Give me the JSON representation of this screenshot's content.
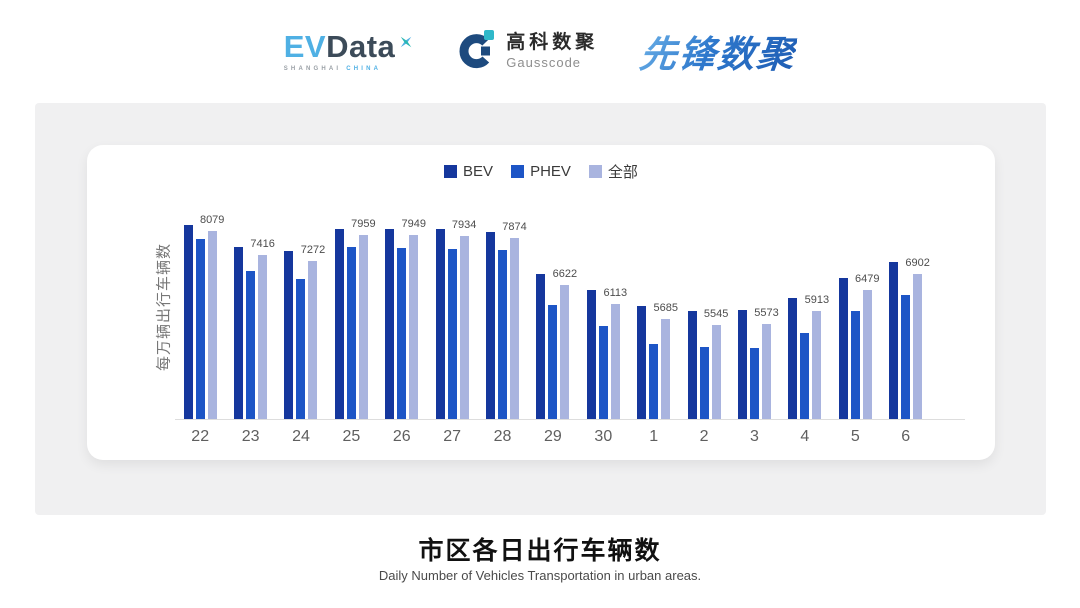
{
  "header": {
    "evdata_logo": {
      "ev": "EV",
      "data": "Data",
      "tagline_location": "SHANGHAI",
      "tagline_country": "CHINA"
    },
    "gausscode_logo": {
      "name_cn": "高科数聚",
      "name_en": "Gausscode"
    },
    "pioneer_logo": {
      "name": "先锋数聚"
    }
  },
  "chart_data": {
    "type": "bar",
    "title": "市区各日出行车辆数",
    "subtitle": "Daily Number of Vehicles Transportation in urban areas.",
    "ylabel": "每万辆出行车辆数",
    "xlabel": "",
    "categories": [
      "22",
      "23",
      "24",
      "25",
      "26",
      "27",
      "28",
      "29",
      "30",
      "1",
      "2",
      "3",
      "4",
      "5",
      "6"
    ],
    "series": [
      {
        "name": "BEV",
        "color": "#15379D",
        "values": [
          8230,
          7650,
          7540,
          8120,
          8120,
          8120,
          8040,
          6915,
          6465,
          6050,
          5900,
          5945,
          6250,
          6790,
          7220
        ]
      },
      {
        "name": "PHEV",
        "color": "#1D55C6",
        "values": [
          7850,
          6995,
          6780,
          7625,
          7610,
          7590,
          7545,
          6080,
          5520,
          5025,
          4950,
          4925,
          5330,
          5915,
          6355
        ]
      },
      {
        "name": "全部",
        "color": "#A9B4DF",
        "values": [
          8079,
          7416,
          7272,
          7959,
          7949,
          7934,
          7874,
          6622,
          6113,
          5685,
          5545,
          5573,
          5913,
          6479,
          6902
        ]
      }
    ],
    "data_labels": {
      "series": "全部"
    },
    "ylim": [
      3000,
      8500
    ],
    "legend_position": "top",
    "grid": false,
    "axis_line_color": "#DDDDDD",
    "tick_color": "#5F5F5F",
    "value_label_color": "#4D4D4D"
  }
}
